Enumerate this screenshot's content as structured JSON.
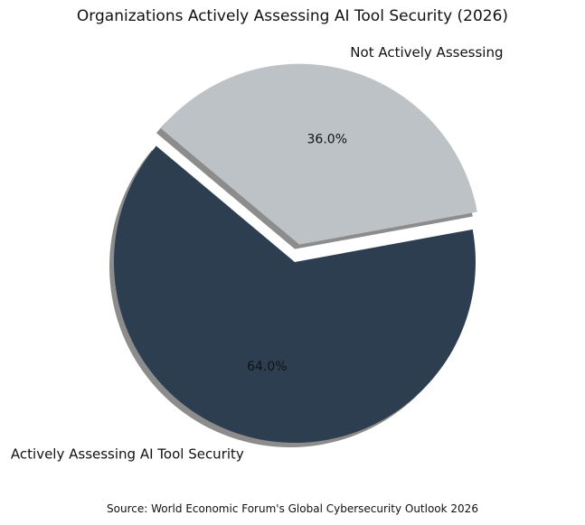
{
  "chart_data": {
    "type": "pie",
    "title": "Organizations Actively Assessing AI Tool Security (2026)",
    "source": "Source: World Economic Forum's Global Cybersecurity Outlook 2026",
    "slices": [
      {
        "label": "Actively Assessing AI Tool Security",
        "value": 64.0,
        "pct_label": "64.0%",
        "color": "#2d3e50"
      },
      {
        "label": "Not Actively Assessing",
        "value": 36.0,
        "pct_label": "36.0%",
        "color": "#bdc2c6",
        "exploded": true
      }
    ],
    "start_angle_deg": 140,
    "shadow": true,
    "legend": "none"
  }
}
